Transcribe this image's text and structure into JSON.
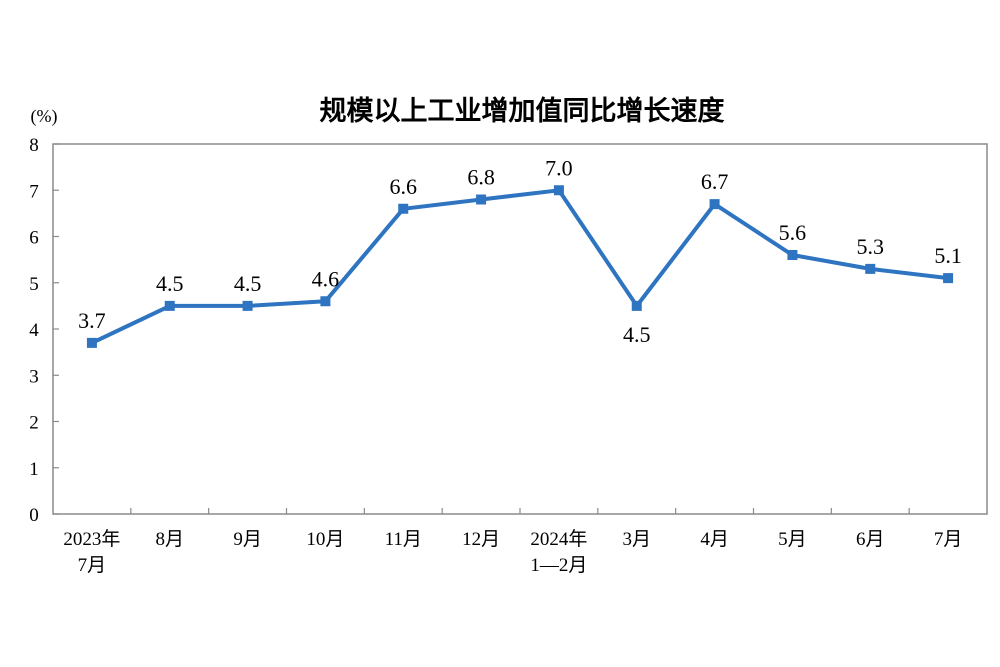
{
  "chart_data": {
    "type": "line",
    "title": "规模以上工业增加值同比增长速度",
    "ylabel": "(%)",
    "xlabel": "",
    "ylim": [
      0,
      8
    ],
    "yticks": [
      "0",
      "1",
      "2",
      "3",
      "4",
      "5",
      "6",
      "7",
      "8"
    ],
    "categories": [
      [
        "2023年",
        "7月"
      ],
      [
        "8月"
      ],
      [
        "9月"
      ],
      [
        "10月"
      ],
      [
        "11月"
      ],
      [
        "12月"
      ],
      [
        "2024年",
        "1—2月"
      ],
      [
        "3月"
      ],
      [
        "4月"
      ],
      [
        "5月"
      ],
      [
        "6月"
      ],
      [
        "7月"
      ]
    ],
    "values": [
      3.7,
      4.5,
      4.5,
      4.6,
      6.6,
      6.8,
      7.0,
      4.5,
      6.7,
      5.6,
      5.3,
      5.1
    ],
    "data_labels": [
      "3.7",
      "4.5",
      "4.5",
      "4.6",
      "6.6",
      "6.8",
      "7.0",
      "4.5",
      "6.7",
      "5.6",
      "5.3",
      "5.1"
    ],
    "label_position": [
      "above",
      "above",
      "above",
      "above",
      "above",
      "above",
      "above",
      "below",
      "above",
      "above",
      "above",
      "above"
    ],
    "line_color": "#2e74c0",
    "frame_color": "#8a8a8a",
    "grid": false,
    "legend": "none"
  }
}
